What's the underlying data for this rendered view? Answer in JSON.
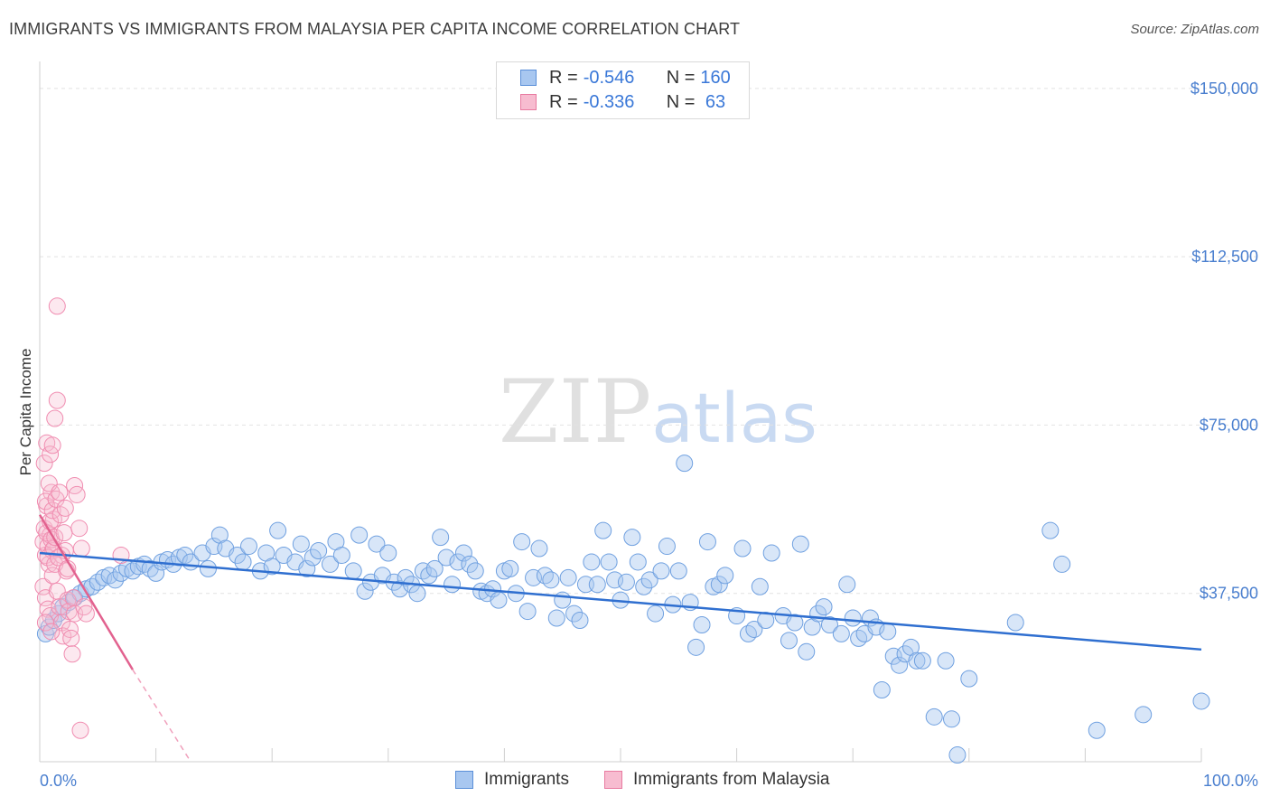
{
  "title": "IMMIGRANTS VS IMMIGRANTS FROM MALAYSIA PER CAPITA INCOME CORRELATION CHART",
  "source": "Source: ZipAtlas.com",
  "watermark": {
    "zip": "ZIP",
    "atlas": "atlas"
  },
  "legend": {
    "rows": [
      {
        "r_label": "R = ",
        "r_value": "-0.546",
        "n_label": "N = ",
        "n_value": "160",
        "color": "#a8c7f0",
        "border": "#5a8fd8"
      },
      {
        "r_label": "R = ",
        "r_value": "-0.336",
        "n_label": "N = ",
        "n_value": " 63",
        "color": "#f7bcd0",
        "border": "#e87aa0"
      }
    ]
  },
  "bottom_legend": [
    {
      "label": "Immigrants",
      "color": "#a8c7f0",
      "border": "#5a8fd8"
    },
    {
      "label": "Immigrants from Malaysia",
      "color": "#f7bcd0",
      "border": "#e87aa0"
    }
  ],
  "chart_data": {
    "type": "scatter",
    "title": "IMMIGRANTS VS IMMIGRANTS FROM MALAYSIA PER CAPITA INCOME CORRELATION CHART",
    "xlabel": "",
    "ylabel": "Per Capita Income",
    "xlim": [
      0,
      100
    ],
    "ylim": [
      0,
      150000
    ],
    "x_tick_labels": [
      "0.0%",
      "100.0%"
    ],
    "y_ticks": [
      37500,
      75000,
      112500,
      150000
    ],
    "y_tick_labels": [
      "$37,500",
      "$75,000",
      "$112,500",
      "$150,000"
    ],
    "grid": true,
    "legend_position": "top-center",
    "series": [
      {
        "name": "Immigrants",
        "color": "#6fa0e0",
        "trend": {
          "x": [
            0,
            100
          ],
          "y": [
            46500,
            25000
          ]
        },
        "points": [
          [
            0.5,
            28500
          ],
          [
            0.8,
            30000
          ],
          [
            1.2,
            31500
          ],
          [
            1.6,
            33000
          ],
          [
            2.0,
            34500
          ],
          [
            2.5,
            35500
          ],
          [
            3,
            36500
          ],
          [
            3.5,
            37500
          ],
          [
            4,
            38500
          ],
          [
            4.5,
            39000
          ],
          [
            5,
            40000
          ],
          [
            5.5,
            41000
          ],
          [
            6,
            41500
          ],
          [
            6.5,
            40500
          ],
          [
            7,
            42000
          ],
          [
            7.5,
            43000
          ],
          [
            8,
            42500
          ],
          [
            8.5,
            43500
          ],
          [
            9,
            44000
          ],
          [
            9.5,
            43000
          ],
          [
            10,
            42000
          ],
          [
            10.5,
            44500
          ],
          [
            11,
            45000
          ],
          [
            11.5,
            44000
          ],
          [
            12,
            45500
          ],
          [
            12.5,
            46000
          ],
          [
            13,
            44500
          ],
          [
            14,
            46500
          ],
          [
            14.5,
            43000
          ],
          [
            15,
            48000
          ],
          [
            15.5,
            50500
          ],
          [
            16,
            47500
          ],
          [
            17,
            46000
          ],
          [
            17.5,
            44500
          ],
          [
            18,
            48000
          ],
          [
            19,
            42500
          ],
          [
            19.5,
            46500
          ],
          [
            20,
            43500
          ],
          [
            20.5,
            51500
          ],
          [
            21,
            46000
          ],
          [
            22,
            44500
          ],
          [
            22.5,
            48500
          ],
          [
            23,
            43000
          ],
          [
            23.5,
            45500
          ],
          [
            24,
            47000
          ],
          [
            25,
            44000
          ],
          [
            25.5,
            49000
          ],
          [
            26,
            46000
          ],
          [
            27,
            42500
          ],
          [
            27.5,
            50500
          ],
          [
            28,
            38000
          ],
          [
            28.5,
            40000
          ],
          [
            29,
            48500
          ],
          [
            29.5,
            41500
          ],
          [
            30,
            46500
          ],
          [
            30.5,
            40000
          ],
          [
            31,
            38500
          ],
          [
            31.5,
            41000
          ],
          [
            32,
            39500
          ],
          [
            32.5,
            37500
          ],
          [
            33,
            42500
          ],
          [
            33.5,
            41500
          ],
          [
            34,
            43000
          ],
          [
            34.5,
            50000
          ],
          [
            35,
            45500
          ],
          [
            35.5,
            39500
          ],
          [
            36,
            44500
          ],
          [
            36.5,
            46500
          ],
          [
            37,
            44000
          ],
          [
            37.5,
            42500
          ],
          [
            38,
            38000
          ],
          [
            38.5,
            37500
          ],
          [
            39,
            38500
          ],
          [
            39.5,
            36000
          ],
          [
            40,
            42500
          ],
          [
            40.5,
            43000
          ],
          [
            41,
            37500
          ],
          [
            41.5,
            49000
          ],
          [
            42,
            33500
          ],
          [
            42.5,
            41000
          ],
          [
            43,
            47500
          ],
          [
            43.5,
            41500
          ],
          [
            44,
            40500
          ],
          [
            44.5,
            32000
          ],
          [
            45,
            36000
          ],
          [
            45.5,
            41000
          ],
          [
            46,
            33000
          ],
          [
            46.5,
            31500
          ],
          [
            47,
            39500
          ],
          [
            47.5,
            44500
          ],
          [
            48,
            39500
          ],
          [
            48.5,
            51500
          ],
          [
            49,
            44500
          ],
          [
            49.5,
            40500
          ],
          [
            50,
            36000
          ],
          [
            50.5,
            40000
          ],
          [
            51,
            50000
          ],
          [
            51.5,
            44500
          ],
          [
            52,
            39000
          ],
          [
            52.5,
            40500
          ],
          [
            53,
            33000
          ],
          [
            53.5,
            42500
          ],
          [
            54,
            48000
          ],
          [
            54.5,
            35000
          ],
          [
            55,
            42500
          ],
          [
            55.5,
            66500
          ],
          [
            56,
            35500
          ],
          [
            56.5,
            25500
          ],
          [
            57,
            30500
          ],
          [
            57.5,
            49000
          ],
          [
            58,
            39000
          ],
          [
            58.5,
            39500
          ],
          [
            59,
            41500
          ],
          [
            60,
            32500
          ],
          [
            60.5,
            47500
          ],
          [
            61,
            28500
          ],
          [
            61.5,
            29500
          ],
          [
            62,
            39000
          ],
          [
            62.5,
            31500
          ],
          [
            63,
            46500
          ],
          [
            64,
            32500
          ],
          [
            64.5,
            27000
          ],
          [
            65,
            31000
          ],
          [
            65.5,
            48500
          ],
          [
            66,
            24500
          ],
          [
            66.5,
            30000
          ],
          [
            67,
            33000
          ],
          [
            67.5,
            34500
          ],
          [
            68,
            30500
          ],
          [
            69,
            28500
          ],
          [
            69.5,
            39500
          ],
          [
            70,
            32000
          ],
          [
            70.5,
            27500
          ],
          [
            71,
            28500
          ],
          [
            71.5,
            32000
          ],
          [
            72,
            30000
          ],
          [
            72.5,
            16000
          ],
          [
            73,
            29000
          ],
          [
            73.5,
            23500
          ],
          [
            74,
            21500
          ],
          [
            74.5,
            24000
          ],
          [
            75,
            25500
          ],
          [
            75.5,
            22500
          ],
          [
            76,
            22500
          ],
          [
            77,
            10000
          ],
          [
            78,
            22500
          ],
          [
            78.5,
            9500
          ],
          [
            79,
            1500
          ],
          [
            80,
            18500
          ],
          [
            84,
            31000
          ],
          [
            87,
            51500
          ],
          [
            88,
            44000
          ],
          [
            91,
            7000
          ],
          [
            95,
            10500
          ],
          [
            100,
            13500
          ]
        ]
      },
      {
        "name": "Immigrants from Malaysia",
        "color": "#f08cb0",
        "trend": {
          "x": [
            0,
            8
          ],
          "y": [
            55000,
            20500
          ]
        },
        "trend_extension": {
          "x": [
            8,
            13
          ],
          "y": [
            20500,
            0
          ]
        },
        "points": [
          [
            0.3,
            49000
          ],
          [
            0.4,
            52000
          ],
          [
            0.5,
            46000
          ],
          [
            0.6,
            57000
          ],
          [
            0.7,
            48000
          ],
          [
            0.8,
            44000
          ],
          [
            0.9,
            50500
          ],
          [
            1.0,
            60000
          ],
          [
            1.1,
            47000
          ],
          [
            1.2,
            54000
          ],
          [
            0.5,
            58000
          ],
          [
            0.6,
            51000
          ],
          [
            0.7,
            45500
          ],
          [
            0.8,
            62000
          ],
          [
            0.9,
            53500
          ],
          [
            1.0,
            49500
          ],
          [
            1.1,
            56000
          ],
          [
            1.2,
            47500
          ],
          [
            1.3,
            50000
          ],
          [
            1.4,
            58500
          ],
          [
            0.4,
            66500
          ],
          [
            0.6,
            71000
          ],
          [
            0.9,
            68500
          ],
          [
            1.1,
            70500
          ],
          [
            1.3,
            76500
          ],
          [
            1.5,
            80500
          ],
          [
            1.5,
            101500
          ],
          [
            1.7,
            60000
          ],
          [
            1.8,
            55000
          ],
          [
            1.9,
            46000
          ],
          [
            0.3,
            39000
          ],
          [
            0.5,
            36500
          ],
          [
            0.7,
            34000
          ],
          [
            0.9,
            32500
          ],
          [
            1.1,
            41500
          ],
          [
            1.3,
            44000
          ],
          [
            1.5,
            38000
          ],
          [
            1.7,
            34500
          ],
          [
            1.9,
            31000
          ],
          [
            2.0,
            28000
          ],
          [
            2.1,
            51000
          ],
          [
            2.2,
            47000
          ],
          [
            2.3,
            42500
          ],
          [
            2.4,
            36000
          ],
          [
            2.5,
            33500
          ],
          [
            2.6,
            29500
          ],
          [
            2.7,
            27500
          ],
          [
            2.8,
            24000
          ],
          [
            2.9,
            36500
          ],
          [
            3.0,
            33000
          ],
          [
            3.0,
            61500
          ],
          [
            3.2,
            59500
          ],
          [
            3.4,
            52000
          ],
          [
            3.6,
            47500
          ],
          [
            3.8,
            34500
          ],
          [
            4.0,
            33000
          ],
          [
            0.5,
            31000
          ],
          [
            1.0,
            29000
          ],
          [
            3.5,
            7000
          ],
          [
            7.0,
            46000
          ],
          [
            2.2,
            56500
          ],
          [
            1.6,
            45500
          ],
          [
            2.4,
            43000
          ]
        ]
      }
    ]
  }
}
